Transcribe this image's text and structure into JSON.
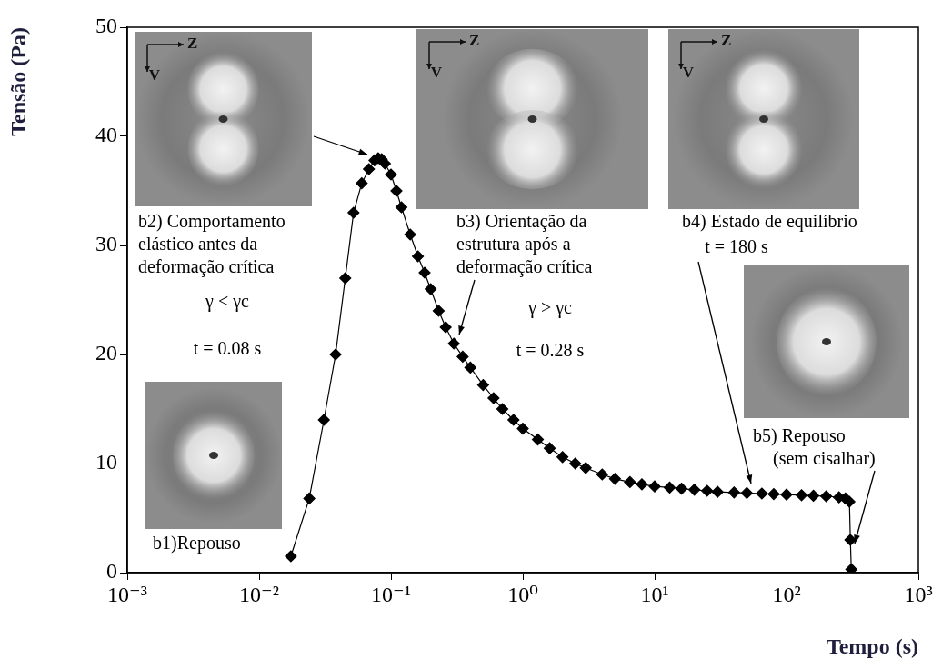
{
  "chart_data": {
    "type": "line",
    "x_label": "Tempo (s)",
    "y_label": "Tensão (Pa)",
    "log": "x",
    "grid": false,
    "color": "#000000",
    "marker": "diamond",
    "xlim": [
      0.001,
      1000
    ],
    "xticks": [
      {
        "value": 0.001,
        "label": "10⁻³"
      },
      {
        "value": 0.01,
        "label": "10⁻²"
      },
      {
        "value": 0.1,
        "label": "10⁻¹"
      },
      {
        "value": 1,
        "label": "10⁰"
      },
      {
        "value": 10,
        "label": "10¹"
      },
      {
        "value": 100,
        "label": "10²"
      },
      {
        "value": 1000,
        "label": "10³"
      }
    ],
    "ylim": [
      0,
      50
    ],
    "yticks": [
      0,
      10,
      20,
      30,
      40,
      50
    ],
    "x": [
      0.0174,
      0.024,
      0.031,
      0.038,
      0.045,
      0.052,
      0.06,
      0.068,
      0.075,
      0.08,
      0.085,
      0.09,
      0.1,
      0.11,
      0.12,
      0.14,
      0.16,
      0.18,
      0.2,
      0.23,
      0.26,
      0.3,
      0.35,
      0.4,
      0.5,
      0.6,
      0.7,
      0.85,
      1,
      1.3,
      1.6,
      2,
      2.5,
      3,
      4,
      5,
      6.5,
      8,
      10,
      13,
      16,
      20,
      25,
      30,
      40,
      50,
      65,
      80,
      100,
      130,
      160,
      200,
      250,
      280,
      300,
      305,
      310
    ],
    "values": [
      1.5,
      6.8,
      14,
      20,
      27,
      33,
      35.7,
      37,
      37.8,
      38,
      37.9,
      37.5,
      36.5,
      35,
      33.5,
      31,
      29,
      27.5,
      26,
      24,
      22.5,
      21,
      19.8,
      18.8,
      17.2,
      16,
      15,
      14,
      13.2,
      12.2,
      11.4,
      10.6,
      10,
      9.6,
      9,
      8.6,
      8.3,
      8.1,
      7.9,
      7.8,
      7.7,
      7.6,
      7.5,
      7.4,
      7.35,
      7.3,
      7.25,
      7.2,
      7.15,
      7.1,
      7.05,
      7,
      6.9,
      6.8,
      6.5,
      3,
      0.3
    ],
    "inset_axis_labels": {
      "horizontal": "Z",
      "vertical": "V"
    },
    "annotations": [
      [
        "b1)Repouso"
      ],
      [
        "b2) Comportamento",
        "elástico antes da",
        "deformação crítica",
        "γ < γc",
        "t = 0.08 s"
      ],
      [
        "b3) Orientação da",
        "estrutura após a",
        "deformação crítica",
        "γ > γc",
        "t = 0.28 s"
      ],
      [
        "b4) Estado de equilíbrio",
        "t = 180 s"
      ],
      [
        "b5) Repouso",
        "(sem cisalhar)"
      ]
    ]
  }
}
